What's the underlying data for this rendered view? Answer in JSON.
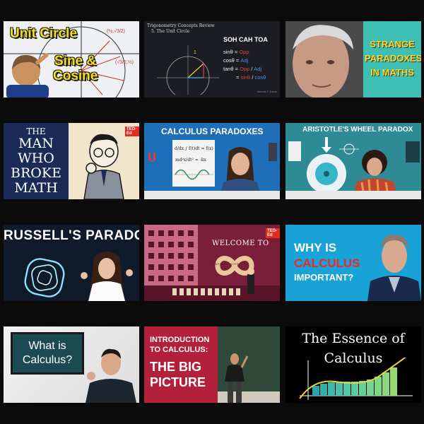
{
  "thumbnails": [
    {
      "title_line1": "Unit Circle",
      "title_line2": "Sine &",
      "title_line3": "Cosine"
    },
    {
      "header_line1": "Trigonometry Concepts Review",
      "header_line2": "5. The Unit Circle",
      "mnemonic": "SOH CAH TOA",
      "eq1_left": "sinθ = ",
      "eq1_right": "Opp",
      "eq2_left": "cosθ = ",
      "eq2_right": "Adj",
      "eq3_left": "tanθ = ",
      "eq3_mid": "Opp",
      "eq3_slash": " / ",
      "eq3_right": "Adj",
      "eq4_left": "= ",
      "eq4_mid": "sinθ",
      "eq4_slash": " / ",
      "eq4_right": "cosθ",
      "unit_label": "1",
      "credit": "Dennis F. Davis"
    },
    {
      "title_line1": "STRANGE",
      "title_line2": "PARADOXES",
      "title_line3": "IN MATHS"
    },
    {
      "title_line1": "THE",
      "title_line2": "MAN",
      "title_line3": "WHO",
      "title_line4": "BROKE",
      "title_line5": "MATH",
      "badge": "TED-Ed"
    },
    {
      "title": "CALCULUS PARADOXES",
      "formula1": "d/dx ∫ f(t)dt = f(x)",
      "formula2": "md²x/dt² = -kx"
    },
    {
      "title": "ARISTOTLE'S WHEEL PARADOX"
    },
    {
      "title": "RUSSELL'S PARADOX"
    },
    {
      "title": "WELCOME TO",
      "sign": "INFINITE HOTEL",
      "badge": "TED-Ed"
    },
    {
      "line1": "WHY IS",
      "line2": "CALCULUS",
      "line3": "IMPORTANT?"
    },
    {
      "line1": "What is",
      "line2": "Calculus?"
    },
    {
      "line1": "INTRODUCTION",
      "line2": "TO CALCULUS:",
      "line3": "THE BIG",
      "line4": "PICTURE"
    },
    {
      "line1": "The Essence of",
      "line2": "Calculus"
    }
  ],
  "colors": {
    "page_bg": "#0b0b0b",
    "ted_red": "#e62b1e",
    "highlight_yellow": "#f6e01c",
    "calc_red": "#f0272a"
  }
}
